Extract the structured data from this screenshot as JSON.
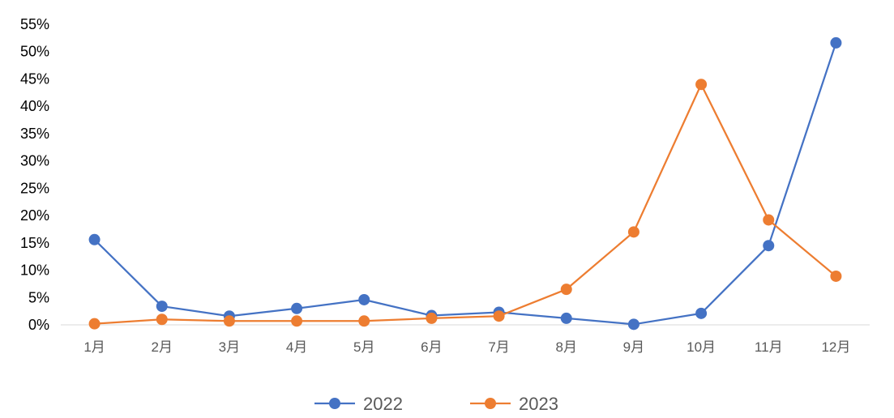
{
  "chart_data": {
    "type": "line",
    "title": "",
    "xlabel": "",
    "ylabel": "",
    "ylim": [
      0,
      55
    ],
    "yticks": [
      "0%",
      "5%",
      "10%",
      "15%",
      "20%",
      "25%",
      "30%",
      "35%",
      "40%",
      "45%",
      "50%",
      "55%"
    ],
    "categories": [
      "1月",
      "2月",
      "3月",
      "4月",
      "5月",
      "6月",
      "7月",
      "8月",
      "9月",
      "10月",
      "11月",
      "12月"
    ],
    "grid": false,
    "legend_position": "bottom",
    "series": [
      {
        "name": "2022",
        "color": "#4472C4",
        "values": [
          15.6,
          3.4,
          1.6,
          3.0,
          4.6,
          1.7,
          2.3,
          1.2,
          0.1,
          2.1,
          14.5,
          51.6
        ]
      },
      {
        "name": "2023",
        "color": "#ED7D31",
        "values": [
          0.2,
          1.0,
          0.7,
          0.7,
          0.7,
          1.2,
          1.6,
          6.5,
          17.0,
          44.0,
          19.2,
          8.9
        ]
      }
    ]
  }
}
